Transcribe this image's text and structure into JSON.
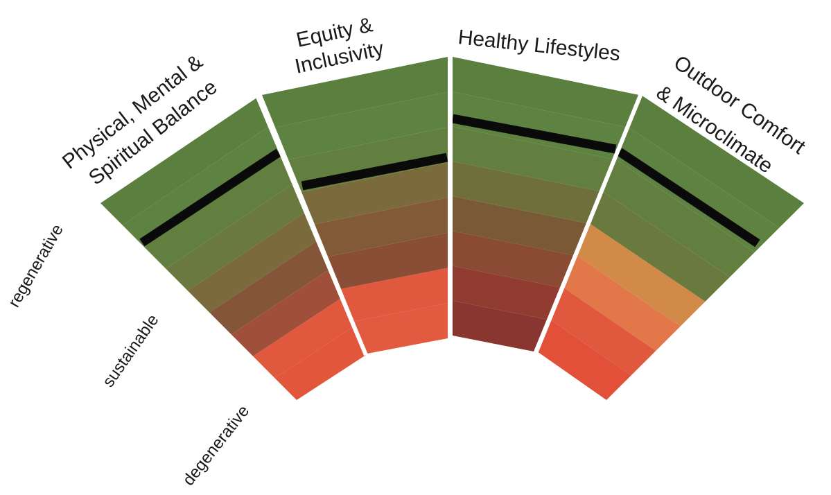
{
  "diagram": {
    "sections": [
      {
        "id": "physical",
        "title_lines": [
          "Physical, Mental &",
          "Spiritual Balance"
        ]
      },
      {
        "id": "equity",
        "title_lines": [
          "Equity &",
          "Inclusivity"
        ]
      },
      {
        "id": "healthy",
        "title_lines": [
          "Healthy Lifestyles"
        ]
      },
      {
        "id": "outdoor",
        "title_lines": [
          "Outdoor Comfort",
          "& Microclimate"
        ]
      }
    ],
    "scale_labels": [
      "regenerative",
      "sustainable",
      "degenerative"
    ],
    "colors": {
      "physical": [
        "#5a7f3f",
        "#5e8242",
        "#627f40",
        "#6a7a3e",
        "#7a6a3c",
        "#85553a",
        "#a0503a",
        "#e0583e",
        "#e2563c"
      ],
      "equity": [
        "#5a7f3f",
        "#5e8242",
        "#627f40",
        "#7a6a3c",
        "#835a38",
        "#8a4e36",
        "#e0583e",
        "#e25a40"
      ],
      "healthy": [
        "#5a7f3f",
        "#5e8242",
        "#627f40",
        "#6f6f3c",
        "#7a5a36",
        "#8a4a34",
        "#903c30",
        "#8a3630"
      ],
      "outdoor": [
        "#5a7f3f",
        "#5e8242",
        "#627f40",
        "#6a7a3e",
        "#d28a48",
        "#e2784a",
        "#e0583e",
        "#e2503a"
      ],
      "score_line": "#0a0a0a",
      "separator": "#ffffff"
    }
  }
}
